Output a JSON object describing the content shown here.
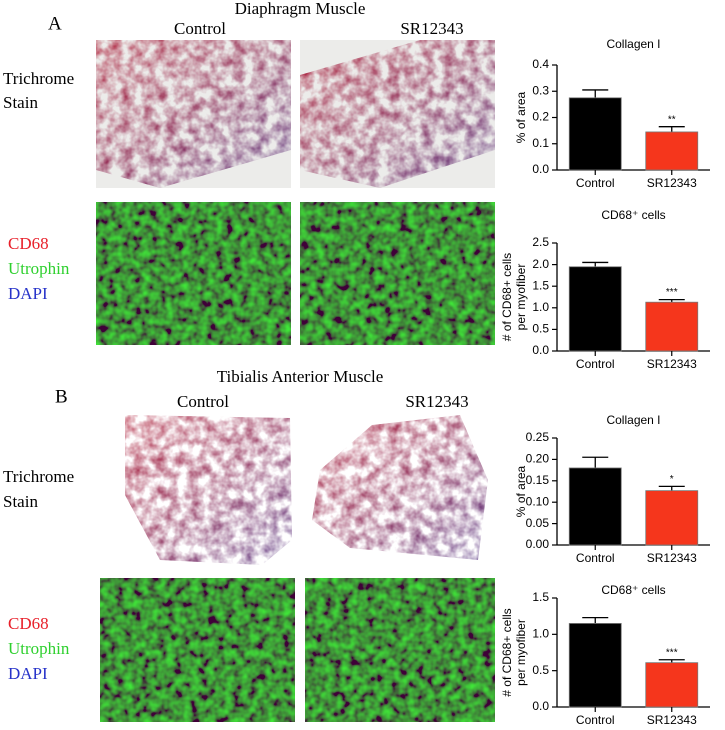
{
  "panels": [
    {
      "label": "A",
      "title": "Diaphragm Muscle",
      "columns": [
        "Control",
        "SR12343"
      ],
      "rows": [
        [
          "Trichrome",
          "Stain"
        ],
        [
          "CD68",
          "Utrophin",
          "DAPI"
        ]
      ]
    },
    {
      "label": "B",
      "title": "Tibialis Anterior Muscle",
      "columns": [
        "Control",
        "SR12343"
      ],
      "rows": [
        [
          "Trichrome",
          "Stain"
        ],
        [
          "CD68",
          "Utrophin",
          "DAPI"
        ]
      ]
    }
  ],
  "chart_data": [
    {
      "type": "bar",
      "title": "Collagen I",
      "y_label": [
        "% of area"
      ],
      "categories": [
        "Control",
        "SR12343"
      ],
      "values": [
        0.275,
        0.145
      ],
      "errors": [
        0.03,
        0.02
      ],
      "colors": [
        "#000000",
        "#f5361c"
      ],
      "annotation": "**",
      "ylim": [
        0,
        0.4
      ],
      "yticks": [
        {
          "value": 0,
          "label": "0.0"
        },
        0.1,
        0.2,
        0.3,
        0.4
      ]
    },
    {
      "type": "bar",
      "title": "CD68⁺ cells",
      "y_label": [
        "# of CD68+ cells",
        "per myofiber"
      ],
      "categories": [
        "Control",
        "SR12343"
      ],
      "values": [
        1.95,
        1.13
      ],
      "errors": [
        0.1,
        0.06
      ],
      "colors": [
        "#000000",
        "#f5361c"
      ],
      "annotation": "***",
      "ylim": [
        0,
        2.5
      ],
      "yticks": [
        {
          "value": 0,
          "label": "0.0"
        },
        0.5,
        {
          "value": 1,
          "label": "1.0"
        },
        1.5,
        {
          "value": 2,
          "label": "2.0"
        },
        2.5
      ]
    },
    {
      "type": "bar",
      "title": "Collagen I",
      "y_label": [
        "% of area"
      ],
      "categories": [
        "Control",
        "SR12343"
      ],
      "values": [
        0.18,
        0.127
      ],
      "errors": [
        0.025,
        0.01
      ],
      "colors": [
        "#000000",
        "#f5361c"
      ],
      "annotation": "*",
      "ylim": [
        0,
        0.25
      ],
      "yticks": [
        {
          "value": 0,
          "label": "0.00"
        },
        0.05,
        {
          "value": 0.1,
          "label": "0.10"
        },
        0.15,
        {
          "value": 0.2,
          "label": "0.20"
        },
        0.25
      ]
    },
    {
      "type": "bar",
      "title": "CD68⁺ cells",
      "y_label": [
        "# of CD68+ cells",
        "per myofiber"
      ],
      "categories": [
        "Control",
        "SR12343"
      ],
      "values": [
        1.15,
        0.61
      ],
      "errors": [
        0.08,
        0.04
      ],
      "colors": [
        "#000000",
        "#f5361c"
      ],
      "annotation": "***",
      "ylim": [
        0,
        1.5
      ],
      "yticks": [
        {
          "value": 0,
          "label": "0.0"
        },
        0.5,
        {
          "value": 1,
          "label": "1.0"
        },
        1.5
      ]
    }
  ]
}
